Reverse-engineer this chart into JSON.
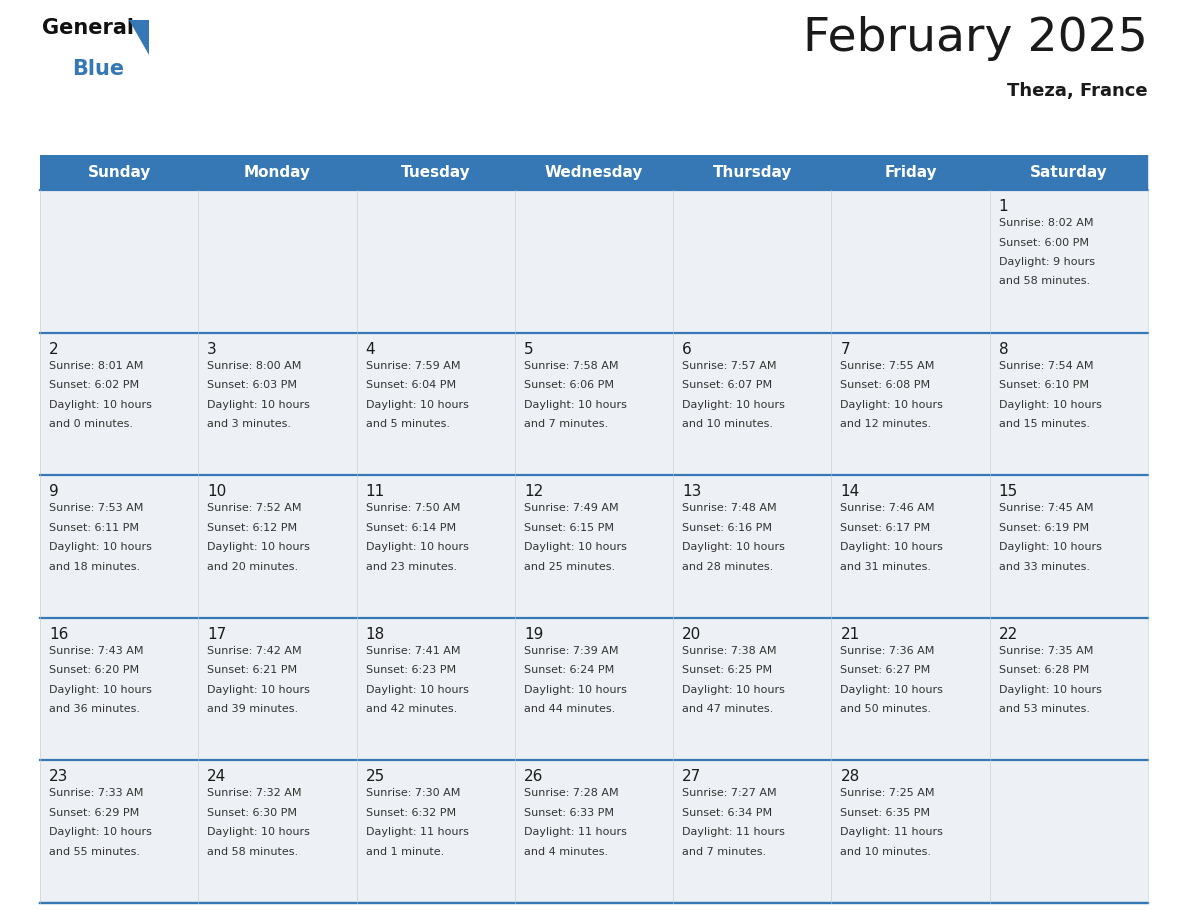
{
  "title": "February 2025",
  "subtitle": "Theza, France",
  "header_color": "#3578b5",
  "header_text_color": "#ffffff",
  "cell_bg_color": "#edf1f5",
  "cell_bg_white": "#ffffff",
  "border_color": "#3578b5",
  "vert_line_color": "#c0c8d0",
  "day_names": [
    "Sunday",
    "Monday",
    "Tuesday",
    "Wednesday",
    "Thursday",
    "Friday",
    "Saturday"
  ],
  "days": [
    {
      "day": 1,
      "col": 6,
      "row": 0,
      "sunrise": "8:02 AM",
      "sunset": "6:00 PM",
      "daylight": "9 hours and 58 minutes"
    },
    {
      "day": 2,
      "col": 0,
      "row": 1,
      "sunrise": "8:01 AM",
      "sunset": "6:02 PM",
      "daylight": "10 hours and 0 minutes"
    },
    {
      "day": 3,
      "col": 1,
      "row": 1,
      "sunrise": "8:00 AM",
      "sunset": "6:03 PM",
      "daylight": "10 hours and 3 minutes"
    },
    {
      "day": 4,
      "col": 2,
      "row": 1,
      "sunrise": "7:59 AM",
      "sunset": "6:04 PM",
      "daylight": "10 hours and 5 minutes"
    },
    {
      "day": 5,
      "col": 3,
      "row": 1,
      "sunrise": "7:58 AM",
      "sunset": "6:06 PM",
      "daylight": "10 hours and 7 minutes"
    },
    {
      "day": 6,
      "col": 4,
      "row": 1,
      "sunrise": "7:57 AM",
      "sunset": "6:07 PM",
      "daylight": "10 hours and 10 minutes"
    },
    {
      "day": 7,
      "col": 5,
      "row": 1,
      "sunrise": "7:55 AM",
      "sunset": "6:08 PM",
      "daylight": "10 hours and 12 minutes"
    },
    {
      "day": 8,
      "col": 6,
      "row": 1,
      "sunrise": "7:54 AM",
      "sunset": "6:10 PM",
      "daylight": "10 hours and 15 minutes"
    },
    {
      "day": 9,
      "col": 0,
      "row": 2,
      "sunrise": "7:53 AM",
      "sunset": "6:11 PM",
      "daylight": "10 hours and 18 minutes"
    },
    {
      "day": 10,
      "col": 1,
      "row": 2,
      "sunrise": "7:52 AM",
      "sunset": "6:12 PM",
      "daylight": "10 hours and 20 minutes"
    },
    {
      "day": 11,
      "col": 2,
      "row": 2,
      "sunrise": "7:50 AM",
      "sunset": "6:14 PM",
      "daylight": "10 hours and 23 minutes"
    },
    {
      "day": 12,
      "col": 3,
      "row": 2,
      "sunrise": "7:49 AM",
      "sunset": "6:15 PM",
      "daylight": "10 hours and 25 minutes"
    },
    {
      "day": 13,
      "col": 4,
      "row": 2,
      "sunrise": "7:48 AM",
      "sunset": "6:16 PM",
      "daylight": "10 hours and 28 minutes"
    },
    {
      "day": 14,
      "col": 5,
      "row": 2,
      "sunrise": "7:46 AM",
      "sunset": "6:17 PM",
      "daylight": "10 hours and 31 minutes"
    },
    {
      "day": 15,
      "col": 6,
      "row": 2,
      "sunrise": "7:45 AM",
      "sunset": "6:19 PM",
      "daylight": "10 hours and 33 minutes"
    },
    {
      "day": 16,
      "col": 0,
      "row": 3,
      "sunrise": "7:43 AM",
      "sunset": "6:20 PM",
      "daylight": "10 hours and 36 minutes"
    },
    {
      "day": 17,
      "col": 1,
      "row": 3,
      "sunrise": "7:42 AM",
      "sunset": "6:21 PM",
      "daylight": "10 hours and 39 minutes"
    },
    {
      "day": 18,
      "col": 2,
      "row": 3,
      "sunrise": "7:41 AM",
      "sunset": "6:23 PM",
      "daylight": "10 hours and 42 minutes"
    },
    {
      "day": 19,
      "col": 3,
      "row": 3,
      "sunrise": "7:39 AM",
      "sunset": "6:24 PM",
      "daylight": "10 hours and 44 minutes"
    },
    {
      "day": 20,
      "col": 4,
      "row": 3,
      "sunrise": "7:38 AM",
      "sunset": "6:25 PM",
      "daylight": "10 hours and 47 minutes"
    },
    {
      "day": 21,
      "col": 5,
      "row": 3,
      "sunrise": "7:36 AM",
      "sunset": "6:27 PM",
      "daylight": "10 hours and 50 minutes"
    },
    {
      "day": 22,
      "col": 6,
      "row": 3,
      "sunrise": "7:35 AM",
      "sunset": "6:28 PM",
      "daylight": "10 hours and 53 minutes"
    },
    {
      "day": 23,
      "col": 0,
      "row": 4,
      "sunrise": "7:33 AM",
      "sunset": "6:29 PM",
      "daylight": "10 hours and 55 minutes"
    },
    {
      "day": 24,
      "col": 1,
      "row": 4,
      "sunrise": "7:32 AM",
      "sunset": "6:30 PM",
      "daylight": "10 hours and 58 minutes"
    },
    {
      "day": 25,
      "col": 2,
      "row": 4,
      "sunrise": "7:30 AM",
      "sunset": "6:32 PM",
      "daylight": "11 hours and 1 minute"
    },
    {
      "day": 26,
      "col": 3,
      "row": 4,
      "sunrise": "7:28 AM",
      "sunset": "6:33 PM",
      "daylight": "11 hours and 4 minutes"
    },
    {
      "day": 27,
      "col": 4,
      "row": 4,
      "sunrise": "7:27 AM",
      "sunset": "6:34 PM",
      "daylight": "11 hours and 7 minutes"
    },
    {
      "day": 28,
      "col": 5,
      "row": 4,
      "sunrise": "7:25 AM",
      "sunset": "6:35 PM",
      "daylight": "11 hours and 10 minutes"
    }
  ],
  "num_rows": 5,
  "num_cols": 7,
  "text_color": "#1a1a1a",
  "info_text_color": "#333333",
  "logo_general_color": "#111111",
  "logo_blue_color": "#3578b5",
  "fig_width": 11.88,
  "fig_height": 9.18,
  "dpi": 100
}
